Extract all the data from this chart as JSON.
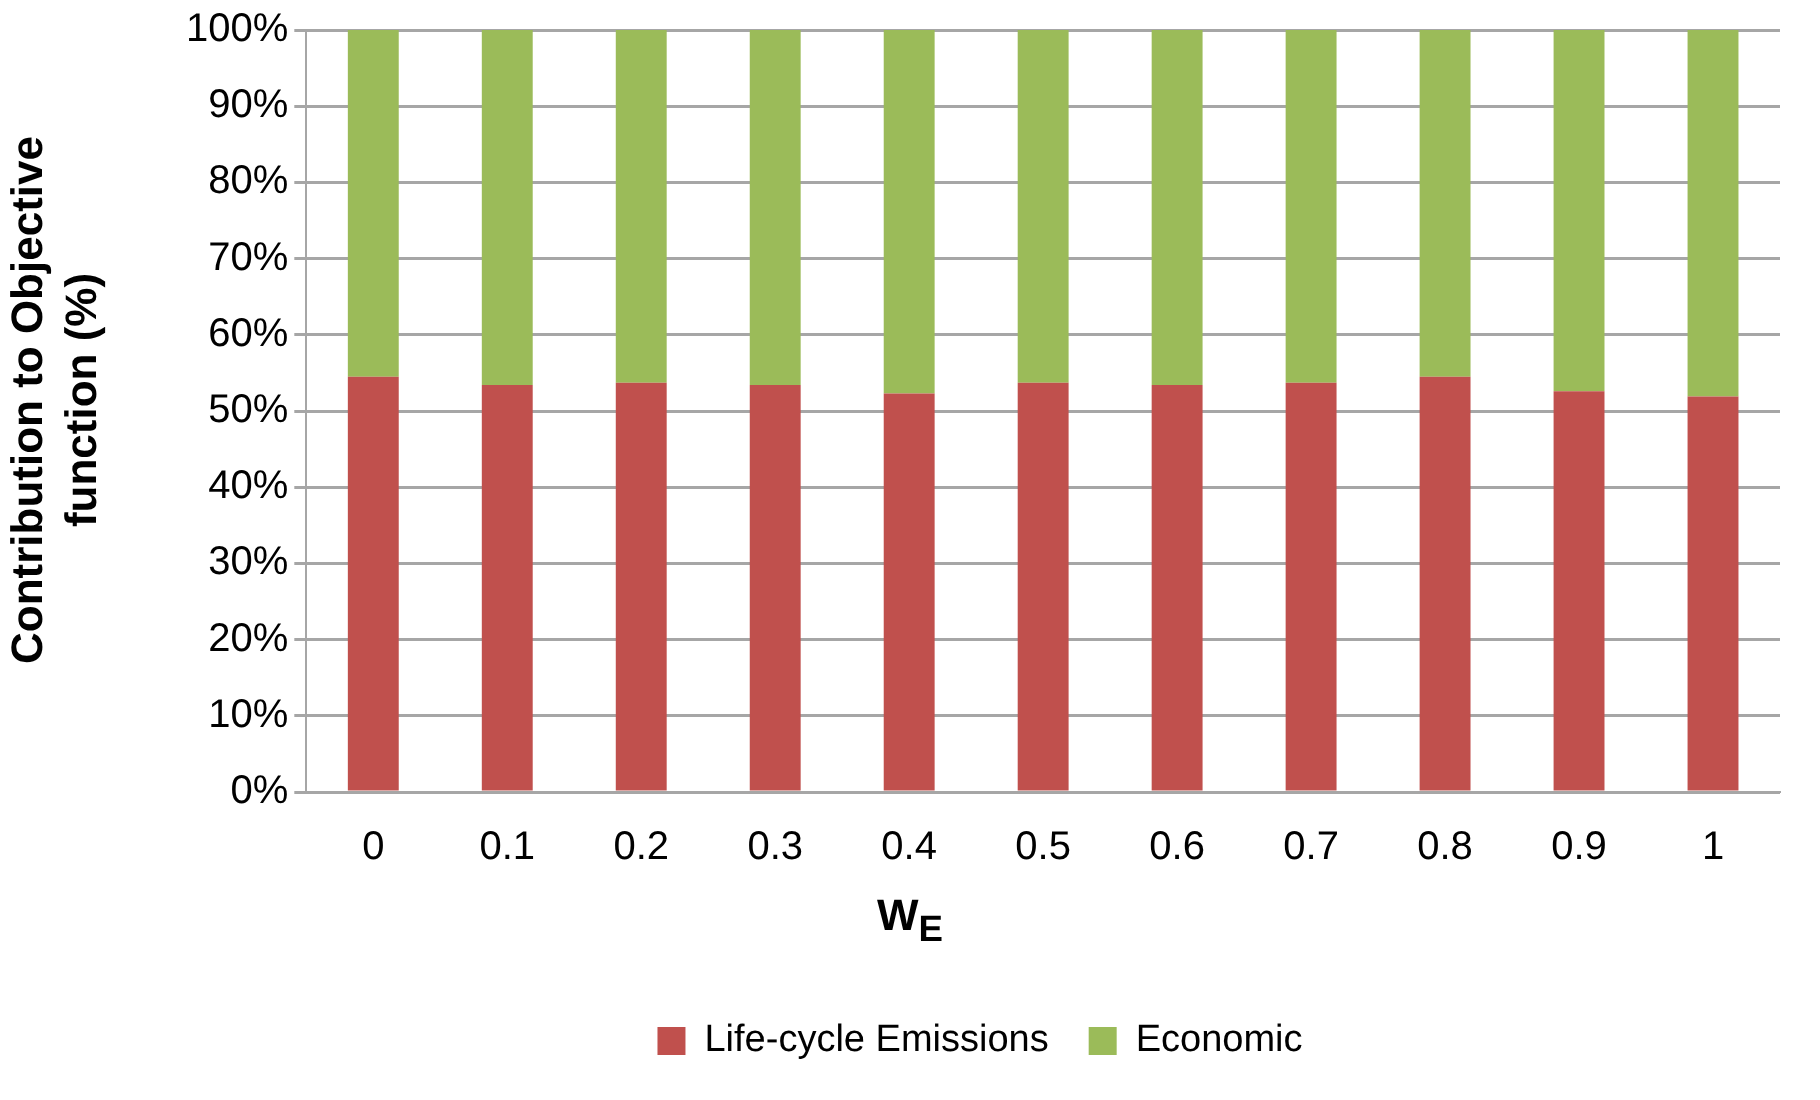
{
  "chart_data": {
    "type": "bar",
    "stacked": true,
    "ylabel": "Contribution to Objective function (%)",
    "xlabel": "W$_{E}$",
    "categories": [
      "0",
      "0.1",
      "0.2",
      "0.3",
      "0.4",
      "0.5",
      "0.6",
      "0.7",
      "0.8",
      "0.9",
      "1"
    ],
    "series": [
      {
        "name": "Life-cycle Emissions",
        "color": "#c0504d",
        "values": [
          54.5,
          53.4,
          53.7,
          53.4,
          52.3,
          53.7,
          53.4,
          53.7,
          54.5,
          52.6,
          51.9
        ]
      },
      {
        "name": "Economic",
        "color": "#9bbb59",
        "values": [
          45.5,
          46.6,
          46.3,
          46.6,
          47.7,
          46.3,
          46.6,
          46.3,
          45.5,
          47.4,
          48.1
        ]
      }
    ],
    "ylim": [
      0,
      100
    ],
    "yticks": [
      {
        "value": 0,
        "label": "0%"
      },
      {
        "value": 10,
        "label": "10%"
      },
      {
        "value": 20,
        "label": "20%"
      },
      {
        "value": 30,
        "label": "30%"
      },
      {
        "value": 40,
        "label": "40%"
      },
      {
        "value": 50,
        "label": "50%"
      },
      {
        "value": 60,
        "label": "60%"
      },
      {
        "value": 70,
        "label": "70%"
      },
      {
        "value": 80,
        "label": "80%"
      },
      {
        "value": 90,
        "label": "90%"
      },
      {
        "value": 100,
        "label": "100%"
      }
    ],
    "grid": "y",
    "legend": "bottom"
  }
}
